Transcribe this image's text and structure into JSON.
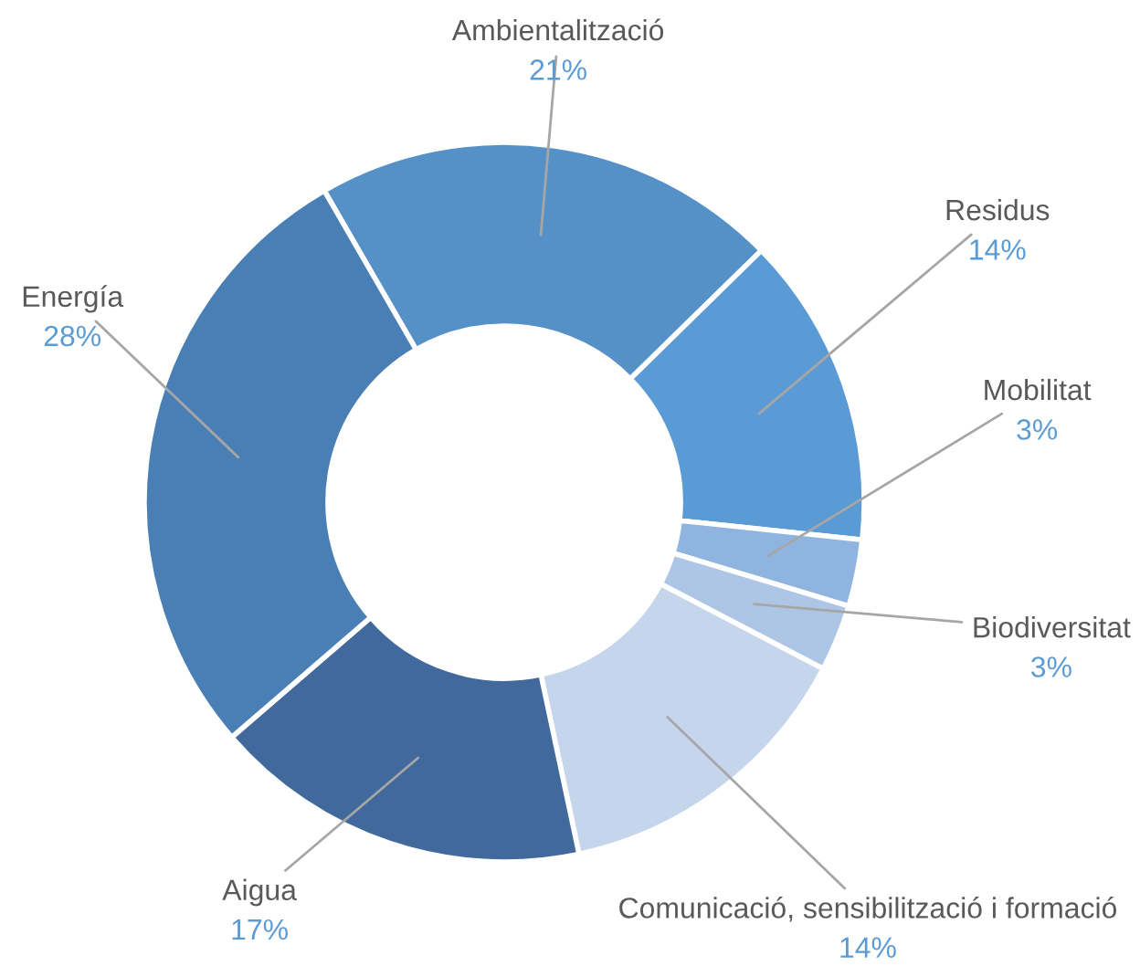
{
  "chart_data": {
    "type": "donut",
    "categories": [
      "Ambientalització",
      "Residus",
      "Mobilitat",
      "Biodiversitat",
      "Comunicació, sensibilització i formació",
      "Aigua",
      "Energía"
    ],
    "values": [
      21,
      14,
      3,
      3,
      14,
      17,
      28
    ],
    "value_labels": [
      "21%",
      "14%",
      "3%",
      "3%",
      "14%",
      "17%",
      "28%"
    ],
    "colors": [
      "#5590c6",
      "#5b9bd5",
      "#8fb4e0",
      "#adc6e6",
      "#c5d5eb",
      "#41699b",
      "#4a7fb5"
    ]
  }
}
